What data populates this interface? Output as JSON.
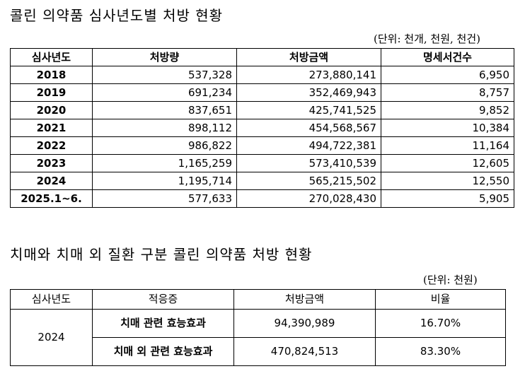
{
  "section1": {
    "title": "콜린 의약품 심사년도별 처방 현황",
    "unit": "(단위: 천개, 천원, 천건)",
    "headers": [
      "심사년도",
      "처방량",
      "처방금액",
      "명세서건수"
    ],
    "rows": [
      [
        "2018",
        "537,328",
        "273,880,141",
        "6,950"
      ],
      [
        "2019",
        "691,234",
        "352,469,943",
        "8,757"
      ],
      [
        "2020",
        "837,651",
        "425,741,525",
        "9,852"
      ],
      [
        "2021",
        "898,112",
        "454,568,567",
        "10,384"
      ],
      [
        "2022",
        "986,822",
        "494,722,381",
        "11,164"
      ],
      [
        "2023",
        "1,165,259",
        "573,410,539",
        "12,605"
      ],
      [
        "2024",
        "1,195,714",
        "565,215,502",
        "12,550"
      ],
      [
        "2025.1~6.",
        "577,633",
        "270,028,430",
        "5,905"
      ]
    ]
  },
  "section2": {
    "title": "치매와 치매 외 질환 구분 콜린 의약품 처방 현황",
    "unit": "(단위:  천원)",
    "headers": [
      "심사년도",
      "적응증",
      "처방금액",
      "비율"
    ],
    "year": "2024",
    "rows": [
      [
        "치매 관련 효능효과",
        "94,390,989",
        "16.70%"
      ],
      [
        "치매 외 관련 효능효과",
        "470,824,513",
        "83.30%"
      ]
    ]
  }
}
